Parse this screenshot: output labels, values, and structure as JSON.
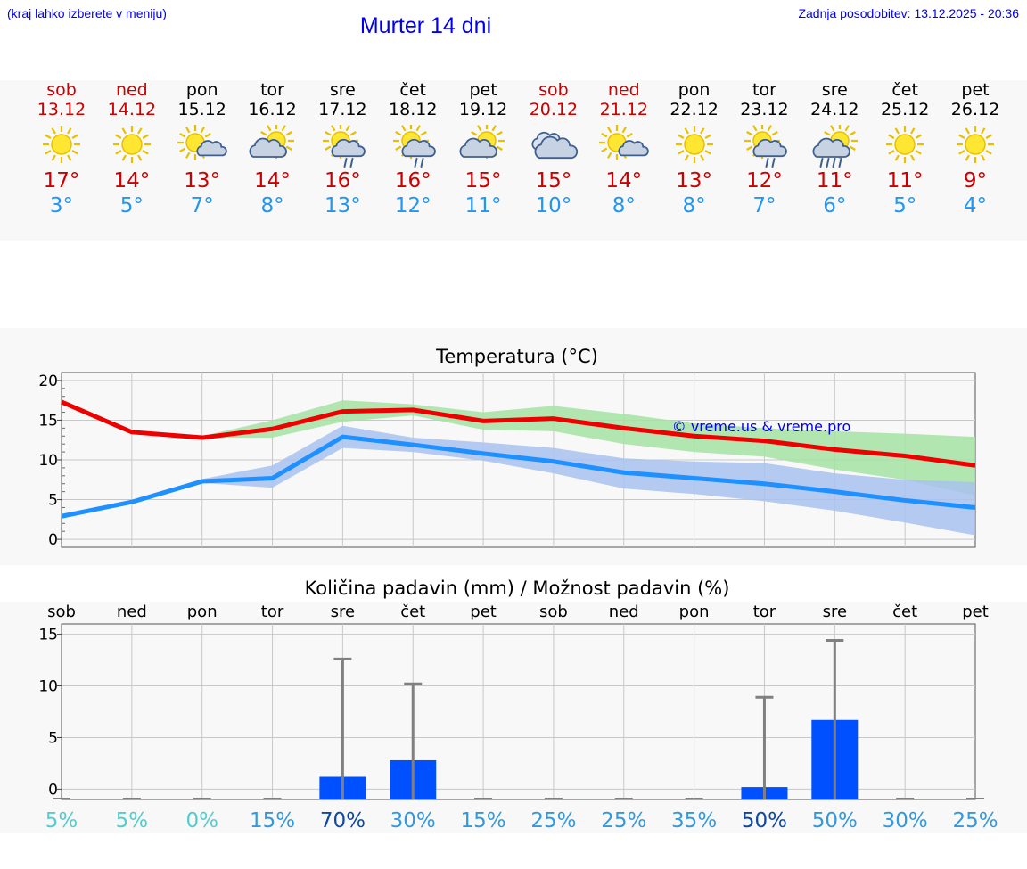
{
  "header": {
    "hint": "(kraj lahko izberete v meniju)",
    "title": "Murter 14 dni",
    "updated": "Zadnja posodobitev: 13.12.2025 - 20:36"
  },
  "colors": {
    "max": "#ee0000",
    "min": "#1e90ff",
    "weekend": "#cc0000",
    "bar": "#0050ff",
    "link": "#0000ee"
  },
  "days": [
    {
      "name": "sob",
      "date": "13.12",
      "weekend": true,
      "icon": "sun-icon",
      "tmax": "17°",
      "tmin": "3°"
    },
    {
      "name": "ned",
      "date": "14.12",
      "weekend": true,
      "icon": "sun-icon",
      "tmax": "14°",
      "tmin": "5°"
    },
    {
      "name": "pon",
      "date": "15.12",
      "weekend": false,
      "icon": "sun-small-cloud-icon",
      "tmax": "13°",
      "tmin": "7°"
    },
    {
      "name": "tor",
      "date": "16.12",
      "weekend": false,
      "icon": "cloud-sun-icon",
      "tmax": "14°",
      "tmin": "8°"
    },
    {
      "name": "sre",
      "date": "17.12",
      "weekend": false,
      "icon": "sun-cloud-rain-icon",
      "tmax": "16°",
      "tmin": "13°"
    },
    {
      "name": "čet",
      "date": "18.12",
      "weekend": false,
      "icon": "sun-cloud-rain-icon",
      "tmax": "16°",
      "tmin": "12°"
    },
    {
      "name": "pet",
      "date": "19.12",
      "weekend": false,
      "icon": "cloud-sun-icon",
      "tmax": "15°",
      "tmin": "11°"
    },
    {
      "name": "sob",
      "date": "20.12",
      "weekend": true,
      "icon": "overcast-icon",
      "tmax": "15°",
      "tmin": "10°"
    },
    {
      "name": "ned",
      "date": "21.12",
      "weekend": true,
      "icon": "sun-small-cloud-icon",
      "tmax": "14°",
      "tmin": "8°"
    },
    {
      "name": "pon",
      "date": "22.12",
      "weekend": false,
      "icon": "sun-icon",
      "tmax": "13°",
      "tmin": "8°"
    },
    {
      "name": "tor",
      "date": "23.12",
      "weekend": false,
      "icon": "sun-cloud-rain-icon",
      "tmax": "12°",
      "tmin": "7°"
    },
    {
      "name": "sre",
      "date": "24.12",
      "weekend": false,
      "icon": "sun-cloud-heavy-rain-icon",
      "tmax": "11°",
      "tmin": "6°"
    },
    {
      "name": "čet",
      "date": "25.12",
      "weekend": false,
      "icon": "sun-icon",
      "tmax": "11°",
      "tmin": "5°"
    },
    {
      "name": "pet",
      "date": "26.12",
      "weekend": false,
      "icon": "sun-icon",
      "tmax": "9°",
      "tmin": "4°"
    }
  ],
  "chart_data": [
    {
      "type": "line",
      "title": "Temperatura (°C)",
      "watermark": "© vreme.us & vreme.pro",
      "x": [
        0,
        1,
        2,
        3,
        4,
        5,
        6,
        7,
        8,
        9,
        10,
        11,
        12,
        13
      ],
      "ylim": [
        -1,
        21
      ],
      "yticks": [
        0,
        5,
        10,
        15,
        20
      ],
      "ytick_labels": [
        "0",
        "5",
        "10",
        "15",
        "20"
      ],
      "grid": true,
      "series": [
        {
          "name": "max",
          "color": "#ee0000",
          "values": [
            17.3,
            13.5,
            12.8,
            13.9,
            16.1,
            16.3,
            14.9,
            15.2,
            14.0,
            13.0,
            12.4,
            11.3,
            10.5,
            9.3
          ],
          "band_low": [
            null,
            null,
            12.8,
            12.8,
            14.8,
            15.6,
            13.8,
            13.6,
            12.0,
            11.0,
            10.4,
            8.8,
            7.5,
            5.5
          ],
          "band_high": [
            null,
            null,
            13.0,
            15.0,
            17.5,
            17.0,
            16.0,
            16.8,
            15.8,
            14.6,
            14.0,
            13.6,
            13.3,
            12.9
          ]
        },
        {
          "name": "min",
          "color": "#1e90ff",
          "values": [
            2.9,
            4.7,
            7.3,
            7.7,
            12.9,
            11.9,
            10.8,
            9.8,
            8.4,
            7.7,
            7.0,
            6.0,
            4.9,
            4.0
          ],
          "band_low": [
            null,
            null,
            7.1,
            6.5,
            11.5,
            11.0,
            9.9,
            8.3,
            6.4,
            5.7,
            4.8,
            3.6,
            2.1,
            0.5
          ],
          "band_high": [
            null,
            null,
            7.6,
            9.3,
            14.3,
            12.8,
            12.2,
            11.5,
            10.2,
            9.8,
            9.6,
            8.3,
            7.5,
            7.2
          ]
        }
      ]
    },
    {
      "type": "bar",
      "title": "Količina padavin (mm) / Možnost padavin (%)",
      "categories": [
        "sob",
        "ned",
        "pon",
        "tor",
        "sre",
        "čet",
        "pet",
        "sob",
        "ned",
        "pon",
        "tor",
        "sre",
        "čet",
        "pet"
      ],
      "values": [
        0,
        0,
        0,
        0,
        1.2,
        2.8,
        0,
        0,
        0,
        0,
        0.2,
        6.7,
        0,
        0
      ],
      "max_values": [
        0,
        0,
        0,
        0,
        12.6,
        10.2,
        0,
        0,
        0,
        0,
        8.9,
        14.4,
        0,
        0
      ],
      "probability": [
        "5%",
        "5%",
        "0%",
        "15%",
        "70%",
        "30%",
        "15%",
        "25%",
        "25%",
        "35%",
        "50%",
        "50%",
        "30%",
        "25%"
      ],
      "prob_colors": [
        "#55cccc",
        "#55cccc",
        "#55cccc",
        "#3399dd",
        "#0d47a1",
        "#3399dd",
        "#3399dd",
        "#3399dd",
        "#3399dd",
        "#3399dd",
        "#0d47a1",
        "#3399dd",
        "#3399dd",
        "#3399dd"
      ],
      "ylim": [
        -1,
        16
      ],
      "yticks": [
        0,
        5,
        10,
        15
      ],
      "ytick_labels": [
        "0",
        "5",
        "10",
        "15"
      ],
      "grid": true
    }
  ]
}
